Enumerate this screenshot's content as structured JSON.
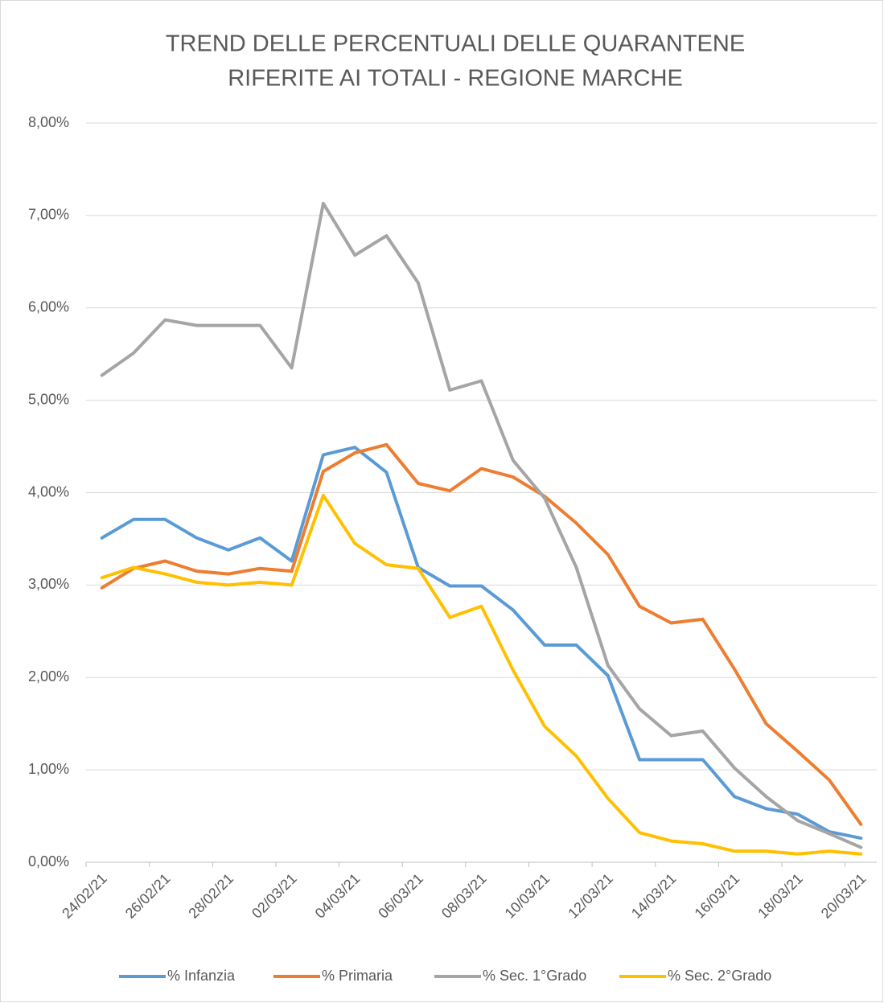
{
  "chart_data": {
    "type": "line",
    "title": [
      "TREND DELLE PERCENTUALI DELLE QUARANTENE",
      "RIFERITE AI TOTALI - REGIONE MARCHE"
    ],
    "categories": [
      "24/02/21",
      null,
      "26/02/21",
      null,
      "28/02/21",
      null,
      "02/03/21",
      null,
      "04/03/21",
      null,
      "06/03/21",
      null,
      "08/03/21",
      null,
      "10/03/21",
      null,
      "12/03/21",
      null,
      "14/03/21",
      null,
      "16/03/21",
      null,
      "18/03/21",
      null,
      "20/03/21"
    ],
    "series": [
      {
        "name": "% Infanzia",
        "color": "#5B9BD5",
        "values": [
          3.51,
          3.71,
          3.71,
          3.51,
          3.38,
          3.51,
          3.26,
          4.41,
          4.49,
          4.22,
          3.19,
          2.99,
          2.99,
          2.73,
          2.35,
          2.35,
          2.02,
          1.11,
          1.11,
          1.11,
          0.71,
          0.58,
          0.52,
          0.33,
          0.26
        ]
      },
      {
        "name": "% Primaria",
        "color": "#ED7D31",
        "values": [
          2.97,
          3.18,
          3.26,
          3.15,
          3.12,
          3.18,
          3.15,
          4.23,
          4.43,
          4.52,
          4.1,
          4.02,
          4.26,
          4.17,
          3.96,
          3.67,
          3.33,
          2.77,
          2.59,
          2.63,
          2.09,
          1.5,
          1.2,
          0.89,
          0.41
        ]
      },
      {
        "name": "% Sec. 1°Grado",
        "color": "#A5A5A5",
        "values": [
          5.27,
          5.51,
          5.87,
          5.81,
          5.81,
          5.81,
          5.35,
          7.13,
          6.57,
          6.78,
          6.27,
          5.11,
          5.21,
          4.35,
          3.94,
          3.19,
          2.13,
          1.66,
          1.37,
          1.42,
          1.02,
          0.71,
          0.45,
          0.31,
          0.16
        ]
      },
      {
        "name": "% Sec. 2°Grado",
        "color": "#FFC000",
        "values": [
          3.08,
          3.19,
          3.12,
          3.03,
          3.0,
          3.03,
          3.0,
          3.97,
          3.45,
          3.22,
          3.18,
          2.65,
          2.77,
          2.08,
          1.47,
          1.15,
          0.69,
          0.32,
          0.23,
          0.2,
          0.12,
          0.12,
          0.09,
          0.12,
          0.09
        ]
      }
    ],
    "ylim": [
      0,
      8
    ],
    "yticks": [
      {
        "value": 0,
        "label": "0,00%"
      },
      {
        "value": 1,
        "label": "1,00%"
      },
      {
        "value": 2,
        "label": "2,00%"
      },
      {
        "value": 3,
        "label": "3,00%"
      },
      {
        "value": 4,
        "label": "4,00%"
      },
      {
        "value": 5,
        "label": "5,00%"
      },
      {
        "value": 6,
        "label": "6,00%"
      },
      {
        "value": 7,
        "label": "7,00%"
      },
      {
        "value": 8,
        "label": "8,00%"
      }
    ],
    "grid": true,
    "legend": "bottom"
  }
}
